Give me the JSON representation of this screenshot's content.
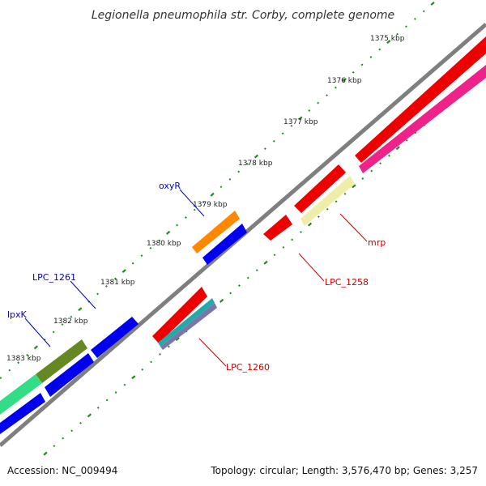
{
  "title": "Legionella pneumophila str. Corby, complete genome",
  "footer": {
    "accession": "Accession: NC_009494",
    "stats": "Topology: circular; Length: 3,576,470 bp; Genes: 3,257"
  },
  "ticks": [
    "1375 kbp",
    "1376 kbp",
    "1377 kbp",
    "1378 kbp",
    "1379 kbp",
    "1380 kbp",
    "1381 kbp",
    "1382 kbp",
    "1383 kbp"
  ],
  "labels": {
    "oxyR": "oxyR",
    "lpc1261": "LPC_1261",
    "lpxK": "lpxK",
    "mrp": "mrp",
    "lpc1258": "LPC_1258",
    "lpc1260": "LPC_1260"
  },
  "colors": {
    "backbone": "#7f7f7f",
    "tick": "#1f8a1f",
    "label_forward": "#0000cc",
    "label_reverse": "#cc0000",
    "red": "#ee0000",
    "magenta": "#ee2288",
    "orange": "#ff8800",
    "blue": "#0000ee",
    "olive": "#668822",
    "mint": "#33dd88",
    "pale_yellow": "#eeeeaa",
    "teal": "#22aaaa",
    "slate": "#7777aa"
  }
}
